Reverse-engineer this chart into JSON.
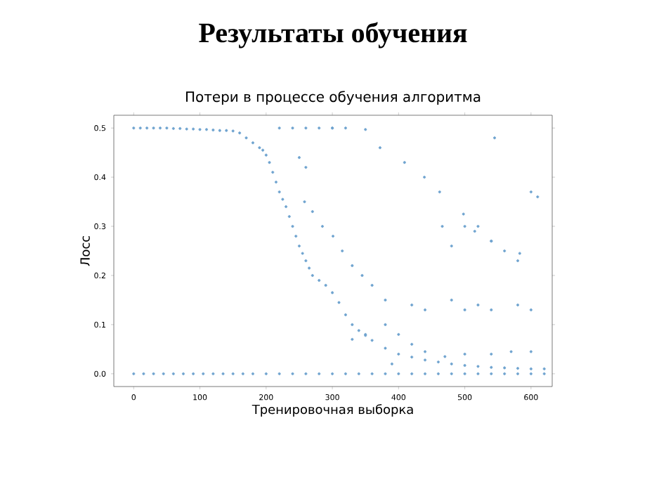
{
  "chart_data": {
    "type": "scatter",
    "title": "Результаты обучения",
    "subtitle": "Потери в процессе обучения алгоритма",
    "xlabel": "Тренировочная выборка",
    "ylabel": "Лосс",
    "x": [
      0,
      10,
      20,
      30,
      40,
      50,
      60,
      70,
      80,
      90,
      100,
      110,
      120,
      130,
      140,
      150,
      160,
      170,
      180,
      190,
      195,
      200,
      205,
      210,
      215,
      220,
      225,
      230,
      235,
      240,
      245,
      250,
      255,
      260,
      265,
      270,
      280,
      290,
      300,
      310,
      320,
      330,
      340,
      350,
      360,
      380,
      400,
      420,
      440,
      460,
      480,
      500,
      520,
      540,
      560,
      580,
      600,
      620,
      0,
      15,
      30,
      45,
      60,
      75,
      90,
      105,
      120,
      135,
      150,
      165,
      180,
      200,
      220,
      240,
      260,
      280,
      300,
      320,
      340,
      360,
      380,
      400,
      420,
      440,
      460,
      480,
      500,
      520,
      540,
      560,
      580,
      600,
      620,
      220,
      240,
      260,
      280,
      300,
      320,
      300,
      350,
      372,
      409,
      439,
      462,
      498,
      515,
      540,
      583,
      258,
      270,
      285,
      301,
      315,
      330,
      345,
      360,
      380,
      380,
      400,
      420,
      440,
      470,
      500,
      540,
      570,
      600,
      466,
      480,
      500,
      520,
      540,
      560,
      580,
      600,
      580,
      520,
      540,
      610,
      545,
      600,
      330,
      350,
      420,
      440,
      480,
      500,
      250,
      260,
      390
    ],
    "values": [
      0.5,
      0.5,
      0.5,
      0.5,
      0.5,
      0.5,
      0.499,
      0.499,
      0.498,
      0.498,
      0.497,
      0.497,
      0.496,
      0.495,
      0.495,
      0.494,
      0.49,
      0.48,
      0.47,
      0.46,
      0.455,
      0.445,
      0.43,
      0.41,
      0.39,
      0.37,
      0.355,
      0.34,
      0.32,
      0.3,
      0.28,
      0.26,
      0.245,
      0.23,
      0.215,
      0.2,
      0.19,
      0.18,
      0.165,
      0.145,
      0.12,
      0.1,
      0.088,
      0.078,
      0.068,
      0.052,
      0.04,
      0.034,
      0.028,
      0.024,
      0.02,
      0.017,
      0.015,
      0.013,
      0.012,
      0.011,
      0.01,
      0.01,
      0,
      0,
      0,
      0,
      0,
      0,
      0,
      0,
      0,
      0,
      0,
      0,
      0,
      0,
      0,
      0,
      0,
      0,
      0,
      0,
      0,
      0,
      0,
      0,
      0,
      0,
      0,
      0,
      0,
      0,
      0,
      0,
      0,
      0,
      0,
      0.5,
      0.5,
      0.5,
      0.5,
      0.5,
      0.5,
      0.5,
      0.497,
      0.46,
      0.43,
      0.4,
      0.37,
      0.325,
      0.29,
      0.27,
      0.245,
      0.35,
      0.33,
      0.3,
      0.28,
      0.25,
      0.22,
      0.2,
      0.18,
      0.15,
      0.1,
      0.08,
      0.06,
      0.045,
      0.035,
      0.04,
      0.04,
      0.045,
      0.045,
      0.3,
      0.26,
      0.3,
      0.3,
      0.27,
      0.25,
      0.23,
      0.13,
      0.14,
      0.14,
      0.13,
      0.36,
      0.48,
      0.37,
      0.07,
      0.08,
      0.14,
      0.13,
      0.15,
      0.13,
      0.44,
      0.42,
      0.02
    ],
    "color": "#6fa3cf",
    "marker": "circle",
    "xlim": [
      -30,
      632
    ],
    "ylim": [
      -0.026,
      0.526
    ],
    "xticks": [
      0,
      100,
      200,
      300,
      400,
      500,
      600
    ],
    "yticks": [
      {
        "value": 0,
        "label": "0.0"
      },
      {
        "value": 0.1,
        "label": "0.1"
      },
      {
        "value": 0.2,
        "label": "0.2"
      },
      {
        "value": 0.3,
        "label": "0.3"
      },
      {
        "value": 0.4,
        "label": "0.4"
      },
      {
        "value": 0.5,
        "label": "0.5"
      }
    ],
    "grid": false
  }
}
